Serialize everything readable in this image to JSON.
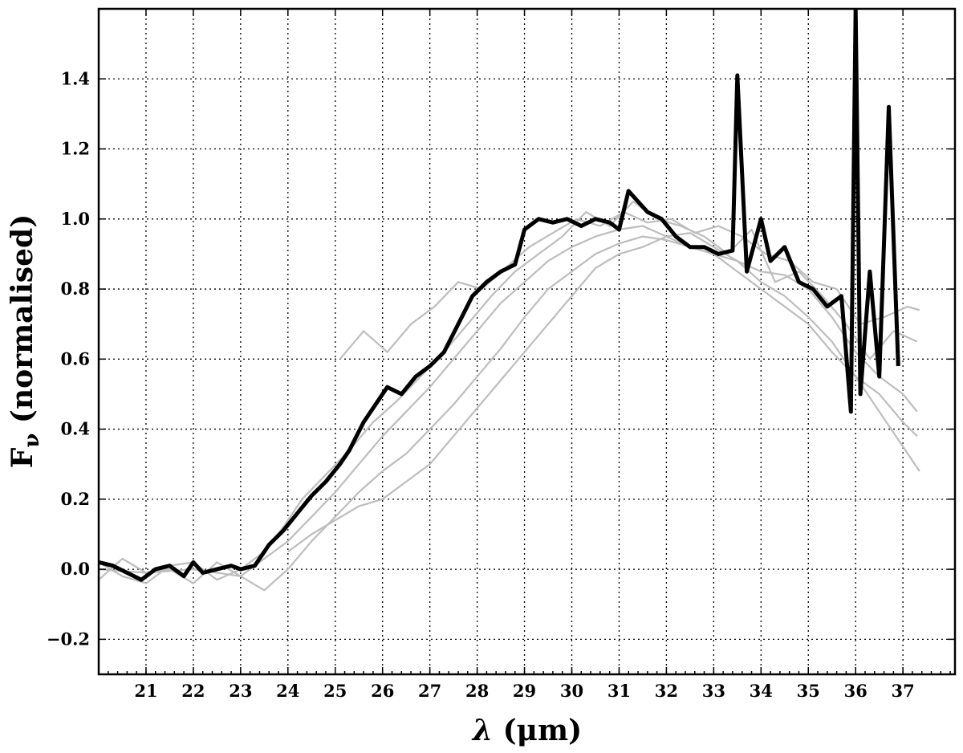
{
  "chart_data": {
    "type": "line",
    "xlabel_symbol": "λ",
    "xlabel_unit": "(μm)",
    "ylabel_main": "F",
    "ylabel_sub": "ν",
    "ylabel_rest": " (normalised)",
    "xlim": [
      20.0,
      38.1
    ],
    "ylim": [
      -0.3,
      1.6
    ],
    "xticks": [
      21,
      22,
      23,
      24,
      25,
      26,
      27,
      28,
      29,
      30,
      31,
      32,
      33,
      34,
      35,
      36,
      37
    ],
    "xtick_labels": [
      "21",
      "22",
      "23",
      "24",
      "25",
      "26",
      "27",
      "28",
      "29",
      "30",
      "31",
      "32",
      "33",
      "34",
      "35",
      "36",
      "37"
    ],
    "yticks": [
      -0.2,
      0.0,
      0.2,
      0.4,
      0.6,
      0.8,
      1.0,
      1.2,
      1.4
    ],
    "ytick_labels": [
      "−0.2",
      "0.0",
      "0.2",
      "0.4",
      "0.6",
      "0.8",
      "1.0",
      "1.2",
      "1.4"
    ],
    "grid": true,
    "series": [
      {
        "role": "individual",
        "color": "#bdbdbd",
        "x": [
          20.0,
          20.5,
          21.0,
          21.5,
          22.0,
          22.5,
          23.0,
          23.5,
          23.9,
          24.3,
          24.8,
          25.3,
          25.8,
          26.3,
          26.8,
          27.3,
          27.8,
          28.3,
          28.8,
          29.3,
          29.8,
          30.3,
          30.8,
          31.3,
          31.8,
          32.3,
          32.8,
          33.3,
          33.8,
          34.3,
          34.8,
          35.3,
          35.8,
          36.3,
          36.8,
          37.3
        ],
        "y": [
          0.02,
          -0.02,
          -0.04,
          0.01,
          0.02,
          -0.03,
          0.0,
          0.05,
          0.12,
          0.2,
          0.27,
          0.34,
          0.42,
          0.48,
          0.55,
          0.62,
          0.7,
          0.78,
          0.85,
          0.9,
          0.95,
          1.02,
          0.98,
          1.05,
          1.0,
          0.98,
          0.95,
          0.9,
          0.97,
          0.82,
          0.85,
          0.78,
          0.7,
          0.6,
          0.68,
          0.65
        ]
      },
      {
        "role": "individual",
        "color": "#bdbdbd",
        "x": [
          20.0,
          20.5,
          21.0,
          21.5,
          22.0,
          22.5,
          23.0,
          23.5,
          24.0,
          24.5,
          25.0,
          25.5,
          26.0,
          26.5,
          27.0,
          27.5,
          28.0,
          28.5,
          29.0,
          29.5,
          30.0,
          30.5,
          31.0,
          31.5,
          32.0,
          32.5,
          33.0,
          33.5,
          34.0,
          34.5,
          35.0,
          35.5,
          36.0,
          36.5,
          37.0,
          37.3
        ],
        "y": [
          -0.03,
          0.03,
          -0.01,
          0.0,
          -0.04,
          0.02,
          -0.02,
          0.03,
          0.08,
          0.15,
          0.22,
          0.3,
          0.38,
          0.45,
          0.52,
          0.6,
          0.68,
          0.76,
          0.82,
          0.88,
          0.92,
          0.95,
          0.97,
          0.98,
          0.95,
          0.96,
          0.92,
          0.88,
          0.85,
          0.84,
          0.8,
          0.72,
          0.62,
          0.55,
          0.5,
          0.45
        ]
      },
      {
        "role": "individual",
        "color": "#bdbdbd",
        "x": [
          20.0,
          21.0,
          22.0,
          23.0,
          23.5,
          24.0,
          24.5,
          25.0,
          25.5,
          26.0,
          26.5,
          27.0,
          27.5,
          28.0,
          28.5,
          29.0,
          29.5,
          30.0,
          30.5,
          31.0,
          31.5,
          32.0,
          32.5,
          33.0,
          33.5,
          34.0,
          34.5,
          35.0,
          35.5,
          36.0,
          36.5,
          37.0,
          37.3
        ],
        "y": [
          0.0,
          -0.01,
          0.0,
          -0.02,
          -0.06,
          0.0,
          0.08,
          0.15,
          0.22,
          0.28,
          0.33,
          0.4,
          0.47,
          0.55,
          0.63,
          0.72,
          0.8,
          0.85,
          0.9,
          0.93,
          0.95,
          0.94,
          0.92,
          0.9,
          0.88,
          0.82,
          0.78,
          0.72,
          0.65,
          0.55,
          0.5,
          0.42,
          0.38
        ]
      },
      {
        "role": "individual",
        "color": "#bdbdbd",
        "x": [
          25.1,
          25.6,
          26.1,
          26.6,
          27.1,
          27.6,
          28.1,
          28.6,
          29.1,
          29.6,
          30.1,
          30.6,
          31.1,
          31.6,
          32.1,
          32.6,
          33.1,
          33.6,
          34.1,
          34.6,
          35.1,
          35.6,
          36.1,
          36.6,
          37.1,
          37.35
        ],
        "y": [
          0.6,
          0.68,
          0.62,
          0.7,
          0.75,
          0.82,
          0.8,
          0.86,
          0.92,
          0.96,
          1.0,
          0.98,
          1.02,
          0.99,
          1.0,
          0.96,
          0.98,
          0.95,
          0.9,
          0.88,
          0.82,
          0.8,
          0.7,
          0.72,
          0.75,
          0.74
        ]
      },
      {
        "role": "individual",
        "color": "#bdbdbd",
        "x": [
          24.0,
          24.5,
          25.0,
          25.5,
          26.0,
          26.5,
          27.0,
          27.5,
          28.0,
          28.5,
          29.0,
          29.5,
          30.0,
          30.5,
          31.0,
          31.5,
          32.0,
          32.5,
          33.0,
          33.5,
          34.0,
          34.5,
          35.0,
          35.5,
          36.0,
          36.5,
          37.0,
          37.35
        ],
        "y": [
          0.05,
          0.1,
          0.14,
          0.18,
          0.2,
          0.25,
          0.3,
          0.38,
          0.46,
          0.54,
          0.62,
          0.7,
          0.78,
          0.86,
          0.9,
          0.92,
          0.95,
          0.92,
          0.9,
          0.85,
          0.8,
          0.75,
          0.7,
          0.62,
          0.55,
          0.45,
          0.35,
          0.28
        ]
      }
    ],
    "mean": {
      "role": "mean",
      "color": "#000000",
      "x": [
        20.0,
        20.3,
        20.6,
        20.9,
        21.2,
        21.5,
        21.8,
        22.0,
        22.2,
        22.5,
        22.8,
        23.0,
        23.3,
        23.6,
        23.9,
        24.2,
        24.5,
        24.8,
        25.1,
        25.3,
        25.6,
        25.9,
        26.1,
        26.4,
        26.7,
        27.0,
        27.3,
        27.6,
        27.9,
        28.2,
        28.5,
        28.8,
        29.0,
        29.3,
        29.6,
        29.9,
        30.2,
        30.5,
        30.8,
        31.0,
        31.2,
        31.4,
        31.6,
        31.9,
        32.2,
        32.5,
        32.8,
        33.1,
        33.4,
        33.5,
        33.7,
        34.0,
        34.2,
        34.5,
        34.8,
        35.1,
        35.4,
        35.7,
        35.9,
        36.0,
        36.1,
        36.3,
        36.5,
        36.7,
        36.9
      ],
      "y": [
        0.02,
        0.01,
        -0.01,
        -0.03,
        0.0,
        0.01,
        -0.02,
        0.02,
        -0.01,
        0.0,
        0.01,
        0.0,
        0.01,
        0.07,
        0.11,
        0.16,
        0.21,
        0.25,
        0.3,
        0.34,
        0.42,
        0.48,
        0.52,
        0.5,
        0.55,
        0.58,
        0.62,
        0.7,
        0.78,
        0.82,
        0.85,
        0.87,
        0.97,
        1.0,
        0.99,
        1.0,
        0.98,
        1.0,
        0.99,
        0.97,
        1.08,
        1.05,
        1.02,
        1.0,
        0.95,
        0.92,
        0.92,
        0.9,
        0.91,
        1.41,
        0.85,
        1.0,
        0.88,
        0.92,
        0.82,
        0.8,
        0.75,
        0.78,
        0.45,
        1.6,
        0.5,
        0.85,
        0.55,
        1.32,
        0.58
      ]
    }
  }
}
